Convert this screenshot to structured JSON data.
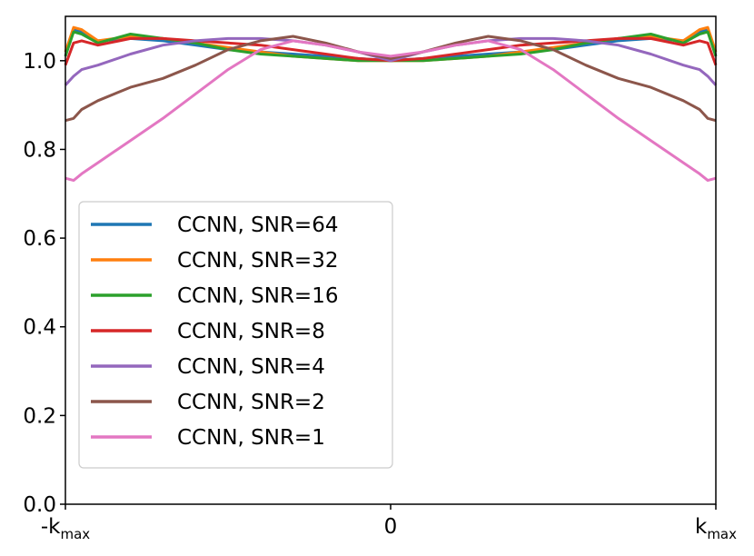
{
  "chart_data": {
    "type": "line",
    "title": "",
    "xlabel": "",
    "ylabel": "",
    "xlim": [
      -1,
      1
    ],
    "ylim": [
      0.0,
      1.1
    ],
    "grid": false,
    "legend_position": "lower-left",
    "x_ticks": [
      {
        "value": -1,
        "label": "-k",
        "sub": "max"
      },
      {
        "value": 0,
        "label": "0",
        "sub": ""
      },
      {
        "value": 1,
        "label": "k",
        "sub": "max"
      }
    ],
    "y_ticks": [
      {
        "value": 0.0,
        "label": "0.0"
      },
      {
        "value": 0.2,
        "label": "0.2"
      },
      {
        "value": 0.4,
        "label": "0.4"
      },
      {
        "value": 0.6,
        "label": "0.6"
      },
      {
        "value": 0.8,
        "label": "0.8"
      },
      {
        "value": 1.0,
        "label": "1.0"
      }
    ],
    "x": [
      -1.0,
      -0.975,
      -0.95,
      -0.9,
      -0.8,
      -0.7,
      -0.6,
      -0.5,
      -0.4,
      -0.3,
      -0.2,
      -0.1,
      0.0,
      0.1,
      0.2,
      0.3,
      0.4,
      0.5,
      0.6,
      0.7,
      0.8,
      0.9,
      0.95,
      0.975,
      1.0
    ],
    "series": [
      {
        "name": "CCNN, SNR=64",
        "color": "#1f77b4",
        "values": [
          1.01,
          1.07,
          1.065,
          1.045,
          1.05,
          1.045,
          1.035,
          1.025,
          1.02,
          1.015,
          1.01,
          1.005,
          1.0,
          1.005,
          1.01,
          1.015,
          1.02,
          1.025,
          1.035,
          1.045,
          1.05,
          1.045,
          1.065,
          1.07,
          1.01
        ]
      },
      {
        "name": "CCNN, SNR=32",
        "color": "#ff7f0e",
        "values": [
          1.02,
          1.075,
          1.07,
          1.045,
          1.055,
          1.05,
          1.04,
          1.03,
          1.02,
          1.01,
          1.005,
          1.0,
          1.0,
          1.0,
          1.005,
          1.01,
          1.02,
          1.03,
          1.04,
          1.05,
          1.055,
          1.045,
          1.07,
          1.075,
          1.02
        ]
      },
      {
        "name": "CCNN, SNR=16",
        "color": "#2ca02c",
        "values": [
          1.01,
          1.065,
          1.06,
          1.04,
          1.06,
          1.05,
          1.04,
          1.025,
          1.015,
          1.01,
          1.005,
          1.0,
          1.0,
          1.0,
          1.005,
          1.01,
          1.015,
          1.025,
          1.04,
          1.05,
          1.06,
          1.04,
          1.06,
          1.065,
          1.01
        ]
      },
      {
        "name": "CCNN, SNR=8",
        "color": "#d62728",
        "values": [
          0.99,
          1.04,
          1.045,
          1.035,
          1.05,
          1.05,
          1.045,
          1.04,
          1.035,
          1.025,
          1.015,
          1.005,
          1.0,
          1.005,
          1.015,
          1.025,
          1.035,
          1.04,
          1.045,
          1.05,
          1.05,
          1.035,
          1.045,
          1.04,
          0.99
        ]
      },
      {
        "name": "CCNN, SNR=4",
        "color": "#9467bd",
        "values": [
          0.945,
          0.965,
          0.98,
          0.99,
          1.015,
          1.035,
          1.045,
          1.05,
          1.05,
          1.045,
          1.035,
          1.02,
          1.0,
          1.02,
          1.035,
          1.045,
          1.05,
          1.05,
          1.045,
          1.035,
          1.015,
          0.99,
          0.98,
          0.965,
          0.945
        ]
      },
      {
        "name": "CCNN, SNR=2",
        "color": "#8c564b",
        "values": [
          0.865,
          0.87,
          0.89,
          0.91,
          0.94,
          0.96,
          0.99,
          1.025,
          1.045,
          1.055,
          1.04,
          1.02,
          1.005,
          1.02,
          1.04,
          1.055,
          1.045,
          1.025,
          0.99,
          0.96,
          0.94,
          0.91,
          0.89,
          0.87,
          0.865
        ]
      },
      {
        "name": "CCNN, SNR=1",
        "color": "#e377c2",
        "values": [
          0.735,
          0.73,
          0.745,
          0.77,
          0.82,
          0.87,
          0.925,
          0.98,
          1.025,
          1.045,
          1.035,
          1.02,
          1.01,
          1.02,
          1.035,
          1.045,
          1.025,
          0.98,
          0.925,
          0.87,
          0.82,
          0.77,
          0.745,
          0.73,
          0.735
        ]
      }
    ]
  }
}
